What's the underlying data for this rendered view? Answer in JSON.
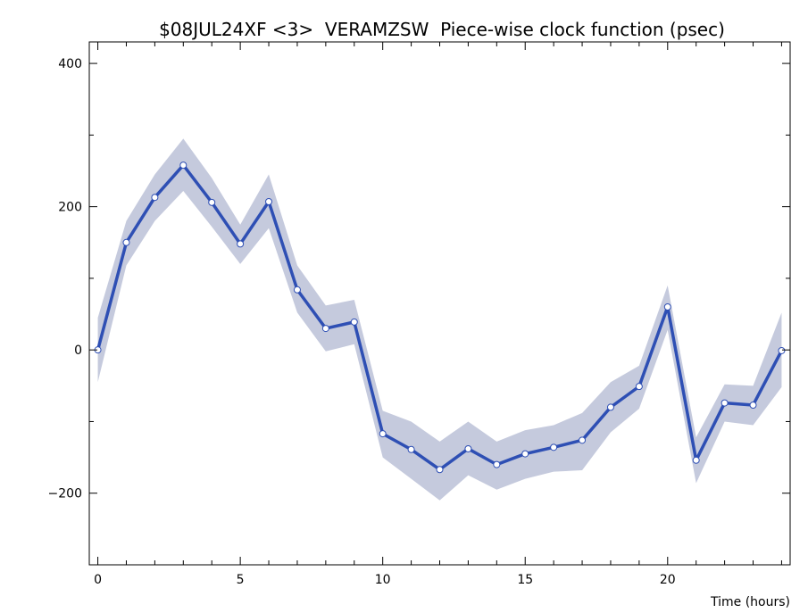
{
  "chart_data": {
    "type": "line",
    "title": "$08JUL24XF <3>  VERAMZSW  Piece-wise clock function (psec)",
    "xlabel": "Time (hours)",
    "ylabel": "",
    "xlim": [
      -0.3,
      24.3
    ],
    "ylim": [
      -300,
      430
    ],
    "xticks": [
      0,
      5,
      10,
      15,
      20
    ],
    "yticks": [
      -200,
      0,
      200,
      400
    ],
    "grid": false,
    "legend": "none",
    "colors": {
      "line": "#2e4fb4",
      "band": "#c5cadd",
      "marker_fill": "#ffffff",
      "axis": "#000000"
    },
    "series": [
      {
        "x": [
          0,
          1,
          2,
          3,
          4,
          5,
          6,
          7,
          8,
          9,
          10,
          11,
          12,
          13,
          14,
          15,
          16,
          17,
          18,
          19,
          20,
          21,
          22,
          23,
          24
        ],
        "values": [
          0,
          150,
          213,
          258,
          206,
          148,
          207,
          84,
          30,
          39,
          -117,
          -139,
          -167,
          -138,
          -160,
          -145,
          -136,
          -126,
          -80,
          -51,
          60,
          -154,
          -74,
          -77,
          -1
        ],
        "band_upper": [
          45,
          180,
          245,
          295,
          240,
          175,
          245,
          118,
          62,
          70,
          -85,
          -100,
          -128,
          -100,
          -128,
          -112,
          -105,
          -88,
          -45,
          -22,
          90,
          -122,
          -48,
          -50,
          52
        ],
        "band_lower": [
          -45,
          118,
          180,
          222,
          172,
          120,
          170,
          52,
          -2,
          8,
          -150,
          -180,
          -210,
          -175,
          -195,
          -180,
          -170,
          -168,
          -115,
          -82,
          28,
          -186,
          -100,
          -105,
          -52
        ]
      }
    ]
  }
}
